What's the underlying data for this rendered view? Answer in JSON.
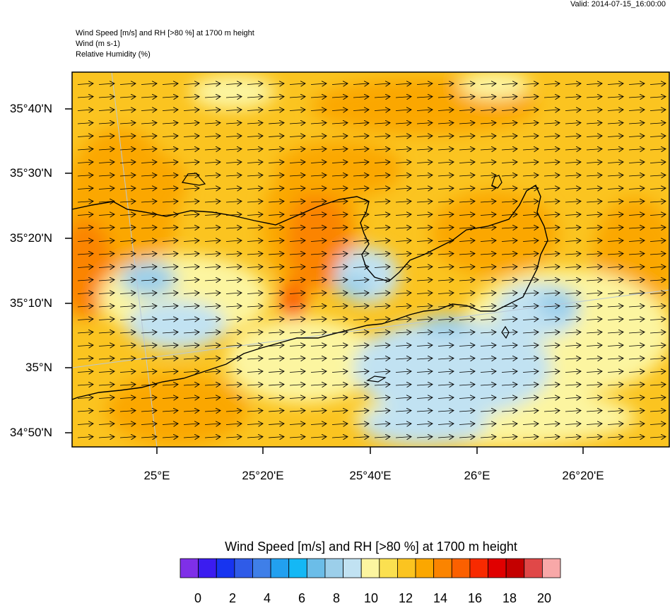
{
  "header": {
    "valid": "Valid: 2014-07-15_16:00:00",
    "line1": "Wind Speed [m/s] and RH [>80 %] at 1700 m height",
    "line2": "Wind   (m s-1)",
    "line3": "Relative Humidity   (%)"
  },
  "map": {
    "lat_labels": [
      "35°40'N",
      "35°30'N",
      "35°20'N",
      "35°10'N",
      "35°N",
      "34°50'N"
    ],
    "lon_labels": [
      "25°E",
      "25°20'E",
      "25°40'E",
      "26°E",
      "26°20'E"
    ]
  },
  "colorbar": {
    "title": "Wind Speed [m/s] and RH [>80 %] at 1700 m height",
    "tick_labels": [
      "0",
      "2",
      "4",
      "6",
      "8",
      "10",
      "12",
      "14",
      "16",
      "18",
      "20"
    ],
    "colors": [
      "#7f2fe8",
      "#3b1cf0",
      "#1734f0",
      "#2f5be8",
      "#3f7fe8",
      "#22a0f0",
      "#14b8f5",
      "#6bbde8",
      "#9ccfea",
      "#c1e2f2",
      "#fcf5a0",
      "#fbe050",
      "#fbc420",
      "#fba700",
      "#fb8400",
      "#fb6000",
      "#f82a00",
      "#e00000",
      "#c40000",
      "#e04848",
      "#f8a8a8"
    ]
  },
  "colors": {
    "land_outline": "#000000",
    "frame": "#000000",
    "grid": "#b8c8d8"
  }
}
